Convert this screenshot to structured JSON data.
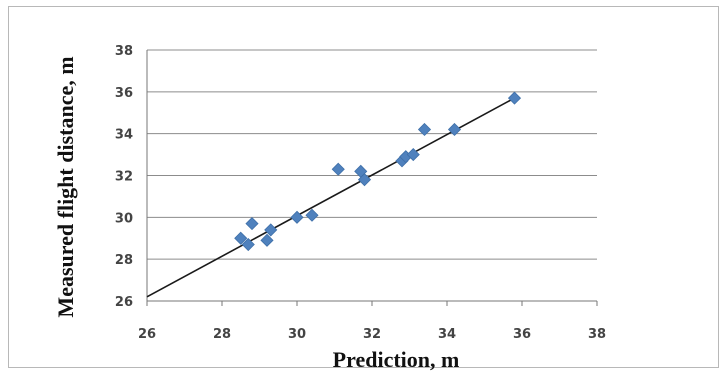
{
  "chart_data": {
    "type": "scatter",
    "xlabel": "Prediction, m",
    "ylabel": "Measured flight distance, m",
    "xlim": [
      26,
      38
    ],
    "ylim": [
      26,
      38
    ],
    "x_ticks": [
      "26",
      "28",
      "30",
      "32",
      "34",
      "36",
      "38"
    ],
    "y_ticks": [
      "26",
      "28",
      "30",
      "32",
      "34",
      "36",
      "38"
    ],
    "grid": "horizontal",
    "marker_color": "#4f81bd",
    "trendline": {
      "x": [
        26,
        35.9
      ],
      "y": [
        26.2,
        35.8
      ]
    },
    "points": [
      {
        "x": 28.5,
        "y": 29.0
      },
      {
        "x": 28.7,
        "y": 28.7
      },
      {
        "x": 28.8,
        "y": 29.7
      },
      {
        "x": 29.2,
        "y": 28.9
      },
      {
        "x": 29.3,
        "y": 29.4
      },
      {
        "x": 30.0,
        "y": 30.0
      },
      {
        "x": 30.4,
        "y": 30.1
      },
      {
        "x": 31.1,
        "y": 32.3
      },
      {
        "x": 31.7,
        "y": 32.2
      },
      {
        "x": 31.8,
        "y": 31.8
      },
      {
        "x": 32.8,
        "y": 32.7
      },
      {
        "x": 32.9,
        "y": 32.9
      },
      {
        "x": 33.1,
        "y": 33.0
      },
      {
        "x": 33.4,
        "y": 34.2
      },
      {
        "x": 34.2,
        "y": 34.2
      },
      {
        "x": 35.8,
        "y": 35.7
      }
    ]
  }
}
